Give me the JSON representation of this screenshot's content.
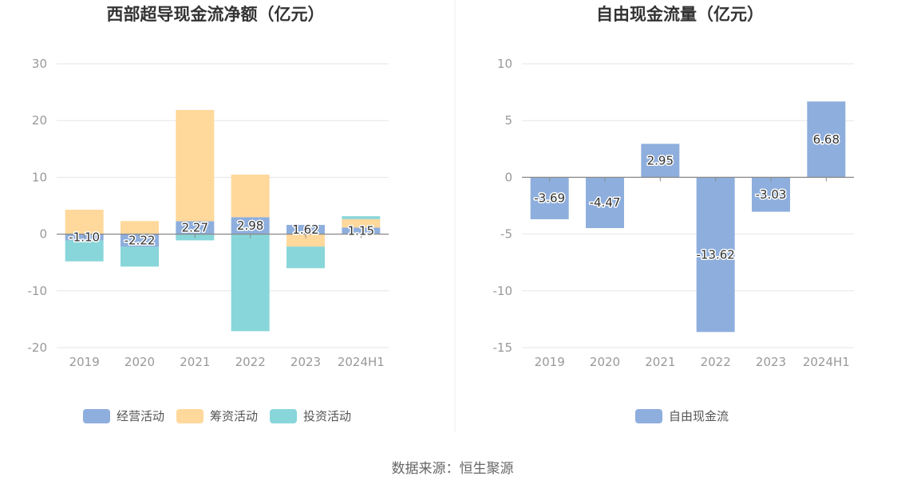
{
  "chart_data": [
    {
      "type": "bar",
      "stacked": true,
      "title": "西部超导现金流净额（亿元）",
      "categories": [
        "2019",
        "2020",
        "2021",
        "2022",
        "2023",
        "2024H1"
      ],
      "ylim": [
        -20,
        30
      ],
      "yticks": [
        -20,
        -10,
        0,
        10,
        20,
        30
      ],
      "series": [
        {
          "name": "经营活动",
          "color": "#8eaedd",
          "values": [
            -1.1,
            -2.22,
            2.27,
            2.98,
            1.62,
            1.15
          ],
          "labels": [
            "-1.10",
            "-2.22",
            "2.27",
            "2.98",
            "1.62",
            "1.15"
          ]
        },
        {
          "name": "筹资活动",
          "color": "#ffd89b",
          "values": [
            4.3,
            2.3,
            19.6,
            7.5,
            -2.2,
            1.5
          ]
        },
        {
          "name": "投资活动",
          "color": "#88d6d9",
          "values": [
            -3.7,
            -3.5,
            -1.1,
            -17.1,
            -3.8,
            0.5
          ]
        }
      ],
      "legend_position": "bottom"
    },
    {
      "type": "bar",
      "title": "自由现金流量（亿元）",
      "categories": [
        "2019",
        "2020",
        "2021",
        "2022",
        "2023",
        "2024H1"
      ],
      "ylim": [
        -15,
        10
      ],
      "yticks": [
        -15,
        -10,
        -5,
        0,
        5,
        10
      ],
      "series": [
        {
          "name": "自由现金流",
          "color": "#8eaedd",
          "values": [
            -3.69,
            -4.47,
            2.95,
            -13.62,
            -3.03,
            6.68
          ],
          "labels": [
            "-3.69",
            "-4.47",
            "2.95",
            "-13.62",
            "-3.03",
            "6.68"
          ]
        }
      ],
      "legend_position": "bottom"
    }
  ],
  "source": "数据来源：恒生聚源"
}
